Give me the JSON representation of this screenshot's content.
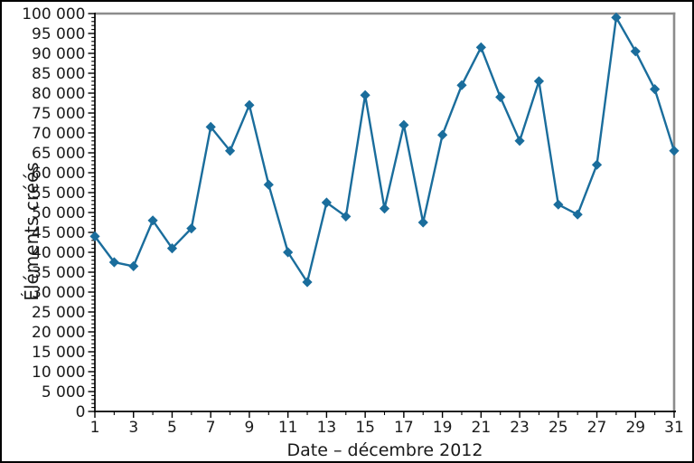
{
  "chart_data": {
    "type": "line",
    "title": "",
    "xlabel": "Date – décembre 2012",
    "ylabel": "Éléments créés",
    "x": [
      1,
      2,
      3,
      4,
      5,
      6,
      7,
      8,
      9,
      10,
      11,
      12,
      13,
      14,
      15,
      16,
      17,
      18,
      19,
      20,
      21,
      22,
      23,
      24,
      25,
      26,
      27,
      28,
      29,
      30,
      31
    ],
    "values": [
      44000,
      37500,
      36500,
      48000,
      41000,
      46000,
      71500,
      65500,
      77000,
      57000,
      40000,
      32500,
      52500,
      49000,
      79500,
      51000,
      72000,
      47500,
      69500,
      82000,
      91500,
      79000,
      68000,
      83000,
      52000,
      49500,
      62000,
      99000,
      90500,
      81000,
      65500
    ],
    "xlim": [
      1,
      31
    ],
    "ylim": [
      0,
      100000
    ],
    "y_major_step": 5000,
    "y_minor_step": 1000,
    "y_tick_labels": [
      "0",
      "5 000",
      "10 000",
      "15 000",
      "20 000",
      "25 000",
      "30 000",
      "35 000",
      "40 000",
      "45 000",
      "50 000",
      "55 000",
      "60 000",
      "65 000",
      "70 000",
      "75 000",
      "80 000",
      "85 000",
      "90 000",
      "95 000",
      "100 000"
    ],
    "x_tick_labels": [
      "1",
      "3",
      "5",
      "7",
      "9",
      "11",
      "13",
      "15",
      "17",
      "19",
      "21",
      "23",
      "25",
      "27",
      "29",
      "31"
    ],
    "x_minor_days": [
      2,
      4,
      6,
      8,
      10,
      12,
      14,
      16,
      18,
      20,
      22,
      24,
      26,
      28,
      30
    ],
    "marker": "diamond",
    "grid": false,
    "legend": "none",
    "line_color": "#1a6d9c",
    "marker_color": "#1a6d9c",
    "frame_color": "#8c8c8c",
    "axis_color": "#000000",
    "text_color": "#1a1a1a"
  }
}
